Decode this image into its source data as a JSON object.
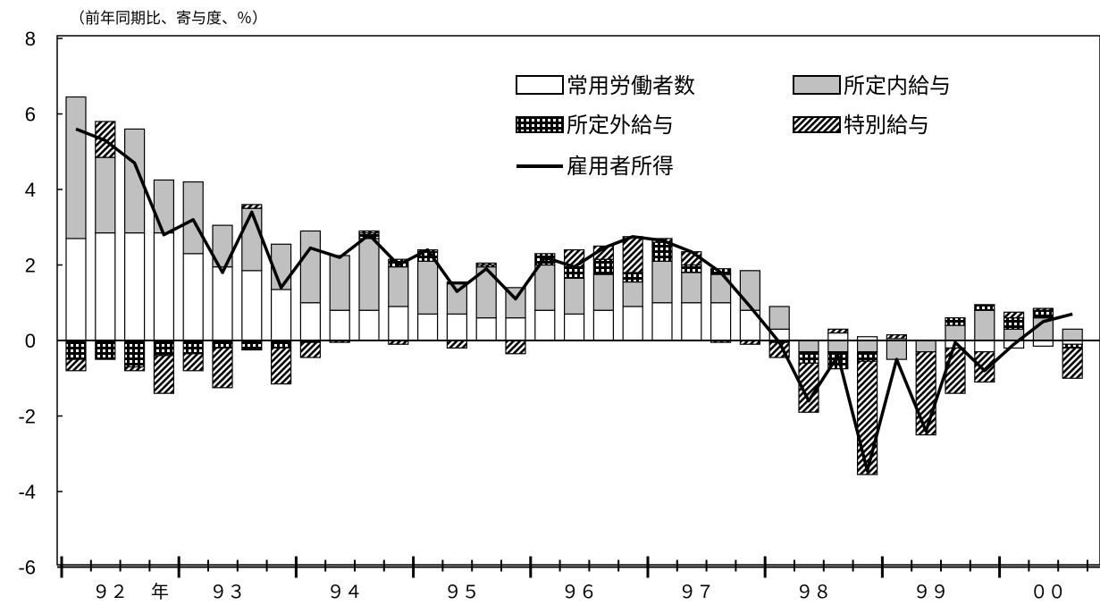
{
  "chart_data": {
    "type": "bar",
    "stacked": true,
    "unit_label": "（前年同期比、寄与度、％）",
    "ylim": [
      -6,
      8
    ],
    "yticks": [
      "8",
      "6",
      "4",
      "2",
      "0",
      "-2",
      "-4",
      "-6"
    ],
    "ytick_values": [
      8,
      6,
      4,
      2,
      0,
      -2,
      -4,
      -6
    ],
    "year_labels": [
      {
        "text": "９２",
        "q": 1.5
      },
      {
        "text": "年",
        "q": 3.2
      },
      {
        "text": "９３",
        "q": 5.5
      },
      {
        "text": "９４",
        "q": 9.5
      },
      {
        "text": "９５",
        "q": 13.5
      },
      {
        "text": "９６",
        "q": 17.5
      },
      {
        "text": "９７",
        "q": 21.5
      },
      {
        "text": "９８",
        "q": 25.5
      },
      {
        "text": "９９",
        "q": 29.5
      },
      {
        "text": "００",
        "q": 33.5
      }
    ],
    "series": [
      {
        "name": "常用労働者数",
        "pattern": "white",
        "values": [
          2.7,
          2.85,
          2.85,
          2.85,
          2.3,
          1.95,
          1.85,
          1.35,
          1.0,
          0.8,
          0.8,
          0.9,
          0.7,
          0.7,
          0.6,
          0.6,
          0.8,
          0.7,
          0.8,
          0.9,
          1.0,
          1.0,
          1.0,
          0.8,
          0.3,
          0.0,
          0.2,
          0.1,
          0.05,
          0.0,
          -0.2,
          -0.3,
          -0.2,
          -0.15,
          -0.1
        ]
      },
      {
        "name": "所定内給与",
        "pattern": "gray",
        "values": [
          3.75,
          2.0,
          2.75,
          1.4,
          1.9,
          1.1,
          1.65,
          1.2,
          1.9,
          1.45,
          1.9,
          1.05,
          1.4,
          0.8,
          1.35,
          0.8,
          1.2,
          0.95,
          0.95,
          0.65,
          1.1,
          0.8,
          0.75,
          1.05,
          0.6,
          -0.3,
          -0.3,
          -0.3,
          -0.5,
          -0.3,
          0.4,
          0.8,
          0.3,
          0.6,
          0.3
        ]
      },
      {
        "name": "所定外給与",
        "pattern": "grid",
        "values": [
          -0.5,
          -0.5,
          -0.7,
          -0.4,
          -0.35,
          -0.2,
          -0.25,
          -0.2,
          -0.05,
          0.0,
          0.15,
          0.2,
          0.25,
          0.05,
          0.05,
          0.0,
          0.3,
          0.3,
          0.4,
          0.25,
          0.5,
          0.2,
          0.15,
          0.0,
          -0.05,
          -0.3,
          -0.45,
          -0.25,
          0.0,
          0.0,
          0.2,
          0.15,
          0.3,
          0.2,
          -0.1
        ]
      },
      {
        "name": "特別給与",
        "pattern": "hatch",
        "values": [
          -0.3,
          0.95,
          -0.1,
          -1.0,
          -0.45,
          -1.05,
          0.1,
          -0.95,
          -0.4,
          -0.05,
          0.05,
          -0.1,
          0.05,
          -0.2,
          0.05,
          -0.35,
          0.0,
          0.45,
          0.35,
          0.95,
          0.1,
          0.35,
          -0.05,
          -0.1,
          -0.4,
          -1.3,
          0.1,
          -3.0,
          0.1,
          -2.2,
          -1.2,
          -0.8,
          0.15,
          0.05,
          -0.8
        ]
      },
      {
        "name": "雇用者所得",
        "type": "line",
        "values": [
          5.6,
          5.3,
          4.7,
          2.8,
          3.2,
          1.8,
          3.4,
          1.4,
          2.45,
          2.2,
          2.8,
          2.0,
          2.4,
          1.3,
          1.9,
          1.1,
          2.2,
          1.95,
          2.45,
          2.75,
          2.65,
          2.35,
          1.8,
          0.9,
          -0.05,
          -1.6,
          -0.4,
          -3.45,
          -0.5,
          -2.4,
          -0.05,
          -0.8,
          -0.1,
          0.5,
          0.7
        ]
      }
    ]
  }
}
